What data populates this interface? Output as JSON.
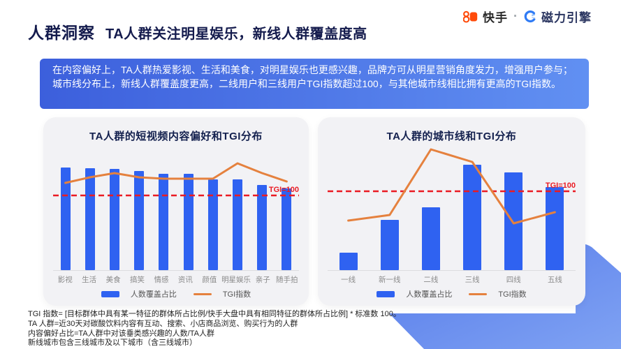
{
  "header": {
    "section_title": "人群洞察",
    "headline": "TA人群关注明星娱乐，新线人群覆盖度高"
  },
  "brand": {
    "kuaishou": "快手",
    "separator": "·",
    "magnetic_engine": "磁力引擎",
    "kuaishou_orange": "#FF4B0A",
    "engine_blue": "#2F7BF5"
  },
  "summary_box": {
    "text": "在内容偏好上，TA人群热爱影视、生活和美食，对明星娱乐也更感兴趣，品牌方可从明星营销角度发力，增强用户参与；城市线分布上，新线人群覆盖度更高，二线用户和三线用户TGI指数超过100，与其他城市线相比拥有更高的TGI指数。",
    "gradient_start": "#3C5FDC",
    "gradient_end": "#6190F2",
    "text_color": "#FFFFFF"
  },
  "chart_data": [
    {
      "type": "bar",
      "subtype": "bar+line-combo",
      "title": "TA人群的短视频内容偏好和TGI分布",
      "categories": [
        "影视",
        "生活",
        "美食",
        "搞笑",
        "情感",
        "资讯",
        "颜值",
        "明星娱乐",
        "亲子",
        "随手拍"
      ],
      "series": [
        {
          "name": "人数覆盖占比",
          "kind": "bar",
          "color": "#2F62F1",
          "estimated": true,
          "values": [
            76,
            75.5,
            75,
            73.5,
            71.5,
            71.5,
            67.5,
            67.5,
            63.5,
            60.5
          ]
        },
        {
          "name": "TGI指数",
          "kind": "line",
          "color": "#E5813E",
          "estimated": true,
          "values": [
            109,
            113,
            116,
            113,
            112,
            112,
            112,
            123,
            116,
            110
          ]
        }
      ],
      "bar_axis_max": 84,
      "reference_line": {
        "value": 100,
        "label": "TGI=100",
        "color": "#EA1B23"
      },
      "legend_position": "bottom",
      "grid": false,
      "note": "bars are unlabeled in source; values estimated from bar heights, TGI estimated vs TGI=100 dashed reference"
    },
    {
      "type": "bar",
      "subtype": "bar+line-combo",
      "title": "TA人群的城市线和TGI分布",
      "categories": [
        "一线",
        "新一线",
        "二线",
        "三线",
        "四线",
        "五线"
      ],
      "series": [
        {
          "name": "人数覆盖占比",
          "kind": "bar",
          "color": "#2F62F1",
          "estimated": true,
          "values": [
            7,
            20,
            25,
            42,
            39,
            33
          ]
        },
        {
          "name": "TGI指数",
          "kind": "line",
          "color": "#E5813E",
          "estimated": true,
          "values": [
            79,
            83,
            130,
            121,
            77,
            85
          ]
        }
      ],
      "bar_axis_max": 45,
      "reference_line": {
        "value": 100,
        "label": "TGI=100",
        "color": "#EA1B23"
      },
      "legend_position": "bottom",
      "grid": false,
      "note": "二线 and 三线 TGI exceed 100; values estimated from plot"
    }
  ],
  "footnotes": [
    "TGI 指数= [目标群体中具有某一特征的群体所占比例/快手大盘中具有相同特征的群体所占比例] * 标准数 100。",
    "TA 人群=近30天对碳酸饮料内容有互动、搜索、小店商品浏览、购买行为的人群",
    "内容偏好占比=TA人群中对该垂类感兴趣的人数/TA人群",
    "新线城市包含三线城市及以下城市（含三线城市）"
  ],
  "colors": {
    "bar_blue": "#2F62F1",
    "tgi_orange": "#E5813E",
    "reference_red": "#EA1B23",
    "card_bg": "#F2F2F5",
    "title_navy": "#141B4D",
    "blob_start": "#577CEA",
    "blob_end": "#7FA2F3"
  }
}
